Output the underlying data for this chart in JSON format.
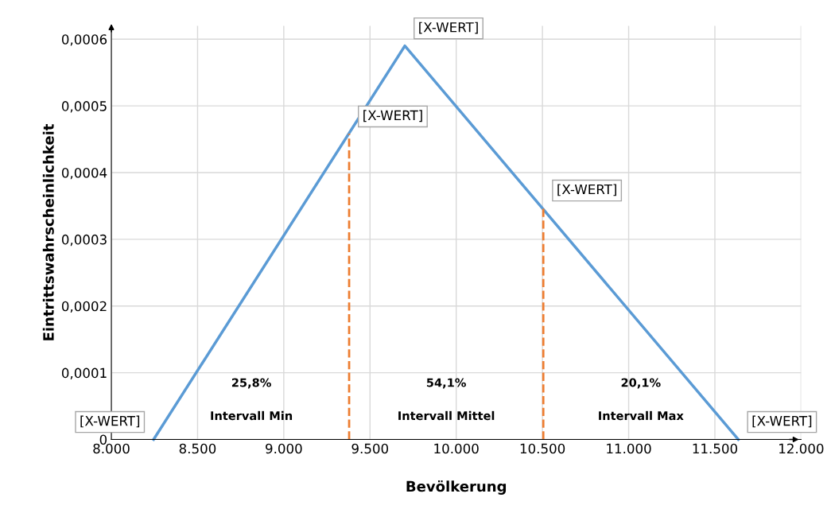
{
  "chart_data": {
    "type": "line",
    "xlabel": "Bevölkerung",
    "ylabel": "Eintrittswahrscheinlichkeit",
    "xlim": [
      8000,
      12000
    ],
    "ylim": [
      0,
      0.00062
    ],
    "xticks": [
      {
        "value": 8000,
        "label": "8.000"
      },
      {
        "value": 8500,
        "label": "8.500"
      },
      {
        "value": 9000,
        "label": "9.000"
      },
      {
        "value": 9500,
        "label": "9.500"
      },
      {
        "value": 10000,
        "label": "10.000"
      },
      {
        "value": 10500,
        "label": "10.500"
      },
      {
        "value": 11000,
        "label": "11.000"
      },
      {
        "value": 11500,
        "label": "11.500"
      },
      {
        "value": 12000,
        "label": "12.000"
      }
    ],
    "yticks": [
      {
        "value": 0,
        "label": "0"
      },
      {
        "value": 0.0001,
        "label": "0,0001"
      },
      {
        "value": 0.0002,
        "label": "0,0002"
      },
      {
        "value": 0.0003,
        "label": "0,0003"
      },
      {
        "value": 0.0004,
        "label": "0,0004"
      },
      {
        "value": 0.0005,
        "label": "0,0005"
      },
      {
        "value": 0.0006,
        "label": "0,0006"
      }
    ],
    "grid": true,
    "legend": false,
    "marker": "none",
    "series": [
      {
        "color": "#5b9bd5",
        "x": [
          8245,
          9702,
          11636
        ],
        "values": [
          0,
          0.00059,
          0
        ]
      },
      {
        "color": "#ed7d31",
        "line_style": "dashed",
        "x": [
          9379,
          9379
        ],
        "values": [
          0,
          0.000458
        ]
      },
      {
        "color": "#ed7d31",
        "line_style": "dashed",
        "x": [
          10505,
          10505
        ],
        "values": [
          0,
          0.000347
        ]
      }
    ],
    "annotations": [
      {
        "text": "[X-WERT]",
        "x": 8245,
        "y": 0
      },
      {
        "text": "[X-WERT]",
        "x": 9702,
        "y": 0.00059
      },
      {
        "text": "[X-WERT]",
        "x": 9379,
        "y": 0.000458
      },
      {
        "text": "[X-WERT]",
        "x": 10505,
        "y": 0.000347
      },
      {
        "text": "[X-WERT]",
        "x": 11636,
        "y": 0
      },
      "25,8%",
      "54,1%",
      "20,1%",
      "Intervall Min",
      "Intervall Mittel",
      "Intervall Max"
    ]
  }
}
